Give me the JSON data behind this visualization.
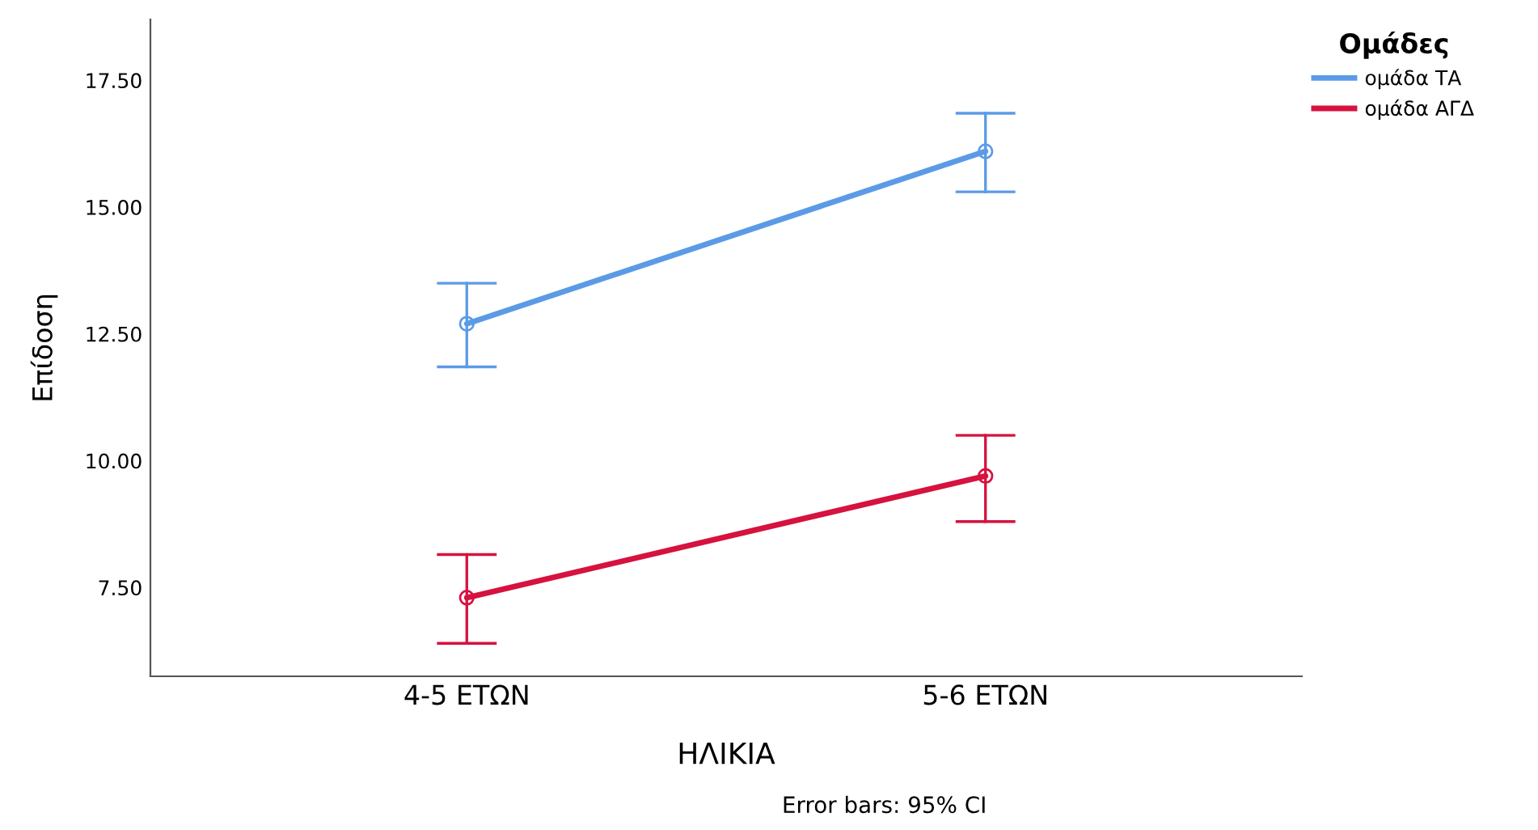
{
  "chart_data": {
    "type": "line",
    "xlabel": "ΗΛΙΚΙΑ",
    "ylabel": "Επίδοση",
    "legend_title": "Ομάδες",
    "categories": [
      "4-5 ΕΤΩΝ",
      "5-6 ΕΤΩΝ"
    ],
    "series": [
      {
        "name": "ομάδα ΤΑ",
        "color": "#5b9be6",
        "values": [
          12.7,
          16.1
        ],
        "errors": [
          [
            11.85,
            13.5
          ],
          [
            15.3,
            16.85
          ]
        ]
      },
      {
        "name": "ομάδα ΑΓΔ",
        "color": "#d6123f",
        "values": [
          7.3,
          9.7
        ],
        "errors": [
          [
            6.4,
            8.15
          ],
          [
            8.8,
            10.5
          ]
        ]
      }
    ],
    "ylim": [
      5.75,
      18.7
    ],
    "yticks": [
      {
        "value": 7.5,
        "label": "7.50"
      },
      {
        "value": 10,
        "label": "10.00"
      },
      {
        "value": 12.5,
        "label": "12.50"
      },
      {
        "value": 15,
        "label": "15.00"
      },
      {
        "value": 17.5,
        "label": "17.50"
      }
    ],
    "marker": "circle",
    "line_style": "solid",
    "grid": false,
    "legend": "top right",
    "annotations": [
      "Error bars: 95% CI"
    ]
  }
}
